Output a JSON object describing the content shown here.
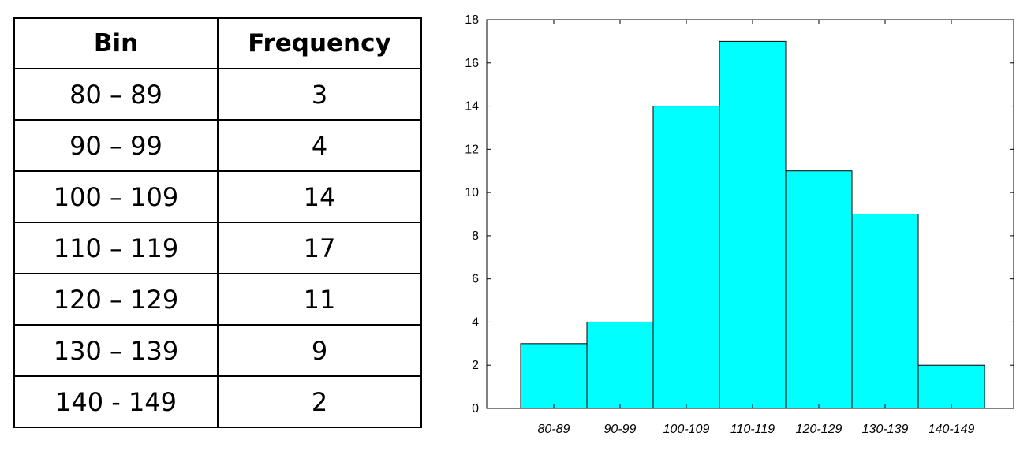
{
  "table": {
    "headers": [
      "Bin",
      "Frequency"
    ],
    "rows": [
      {
        "bin": "80 – 89",
        "frequency": "3"
      },
      {
        "bin": "90 – 99",
        "frequency": "4"
      },
      {
        "bin": "100 – 109",
        "frequency": "14"
      },
      {
        "bin": "110 – 119",
        "frequency": "17"
      },
      {
        "bin": "120 – 129",
        "frequency": "11"
      },
      {
        "bin": "130 – 139",
        "frequency": "9"
      },
      {
        "bin": "140 - 149",
        "frequency": "2"
      }
    ]
  },
  "chart_data": {
    "type": "bar",
    "categories": [
      "80-89",
      "90-99",
      "100-109",
      "110-119",
      "120-129",
      "130-139",
      "140-149"
    ],
    "values": [
      3,
      4,
      14,
      17,
      11,
      9,
      2
    ],
    "title": "",
    "xlabel": "",
    "ylabel": "",
    "ylim": [
      0,
      18
    ],
    "yticks": [
      0,
      2,
      4,
      6,
      8,
      10,
      12,
      14,
      16,
      18
    ],
    "grid": false,
    "legend": "none",
    "bar_color": "#00FFFF",
    "edge_color": "#000000"
  }
}
